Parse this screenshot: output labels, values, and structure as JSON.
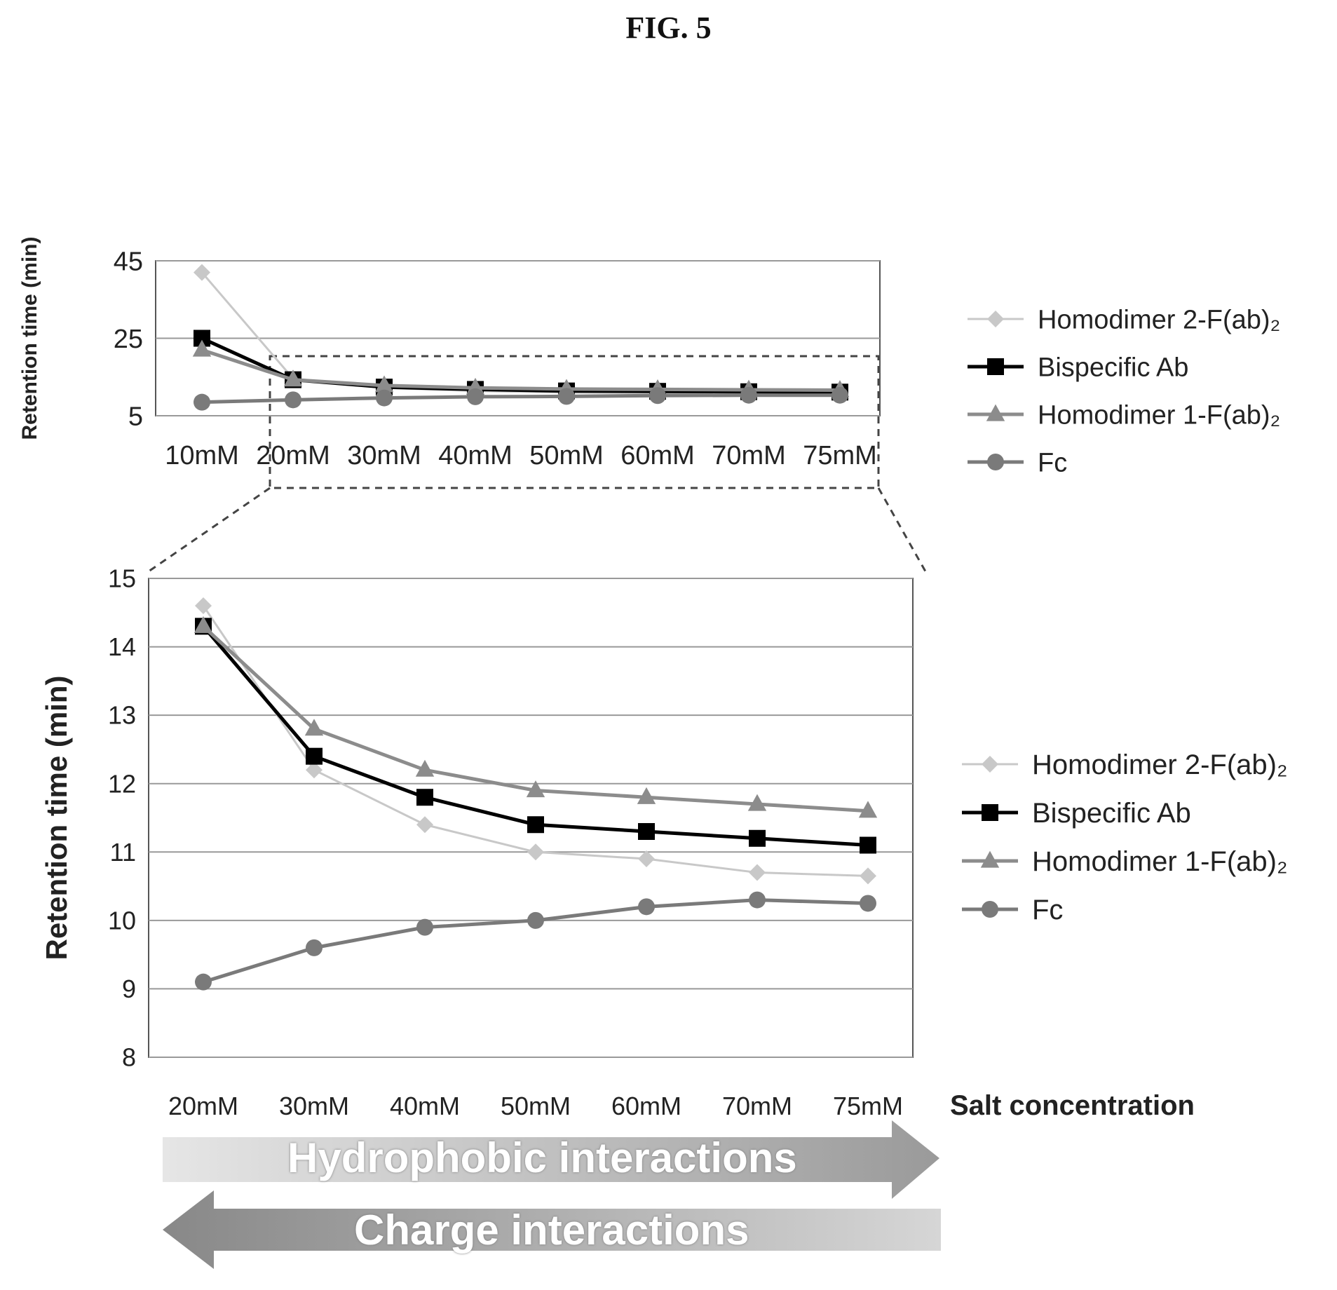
{
  "figure_title": "FIG. 5",
  "colors": {
    "homodimer2": "#c8c8c8",
    "bispecific": "#000000",
    "homodimer1": "#8c8c8c",
    "fc": "#7a7a7a",
    "grid": "#999999"
  },
  "chart_data": [
    {
      "type": "line",
      "ylabel": "Retention time (min)",
      "xlabel": "",
      "yticks": [
        5,
        25,
        45
      ],
      "ylim": [
        5,
        45
      ],
      "categories": [
        "10mM",
        "20mM",
        "30mM",
        "40mM",
        "50mM",
        "60mM",
        "70mM",
        "75mM"
      ],
      "grid": true,
      "legend_position": "right",
      "series": [
        {
          "name": "Homodimer 2-F(ab)₂",
          "marker": "diamond",
          "values": [
            42,
            14.6,
            12.2,
            11.4,
            11.0,
            10.9,
            10.7,
            10.6
          ]
        },
        {
          "name": "Bispecific Ab",
          "marker": "square",
          "values": [
            25,
            14.3,
            12.4,
            11.8,
            11.4,
            11.3,
            11.2,
            11.1
          ]
        },
        {
          "name": "Homodimer 1-F(ab)₂",
          "marker": "triangle",
          "values": [
            22,
            14.3,
            12.8,
            12.2,
            11.9,
            11.8,
            11.7,
            11.6
          ]
        },
        {
          "name": "Fc",
          "marker": "circle",
          "values": [
            8.5,
            9.1,
            9.6,
            9.9,
            10.0,
            10.2,
            10.3,
            10.3
          ]
        }
      ]
    },
    {
      "type": "line",
      "ylabel": "Retention time (min)",
      "xlabel": "Salt concentration",
      "yticks": [
        8,
        9,
        10,
        11,
        12,
        13,
        14,
        15
      ],
      "ylim": [
        8,
        15
      ],
      "categories": [
        "20mM",
        "30mM",
        "40mM",
        "50mM",
        "60mM",
        "70mM",
        "75mM"
      ],
      "grid": true,
      "legend_position": "right",
      "series": [
        {
          "name": "Homodimer 2-F(ab)₂",
          "marker": "diamond",
          "values": [
            14.6,
            12.2,
            11.4,
            11.0,
            10.9,
            10.7,
            10.65
          ]
        },
        {
          "name": "Bispecific Ab",
          "marker": "square",
          "values": [
            14.3,
            12.4,
            11.8,
            11.4,
            11.3,
            11.2,
            11.1
          ]
        },
        {
          "name": "Homodimer 1-F(ab)₂",
          "marker": "triangle",
          "values": [
            14.3,
            12.8,
            12.2,
            11.9,
            11.8,
            11.7,
            11.6
          ]
        },
        {
          "name": "Fc",
          "marker": "circle",
          "values": [
            9.1,
            9.6,
            9.9,
            10.0,
            10.2,
            10.3,
            10.25
          ]
        }
      ]
    }
  ],
  "arrows": {
    "right_label": "Hydrophobic interactions",
    "left_label": "Charge interactions"
  }
}
